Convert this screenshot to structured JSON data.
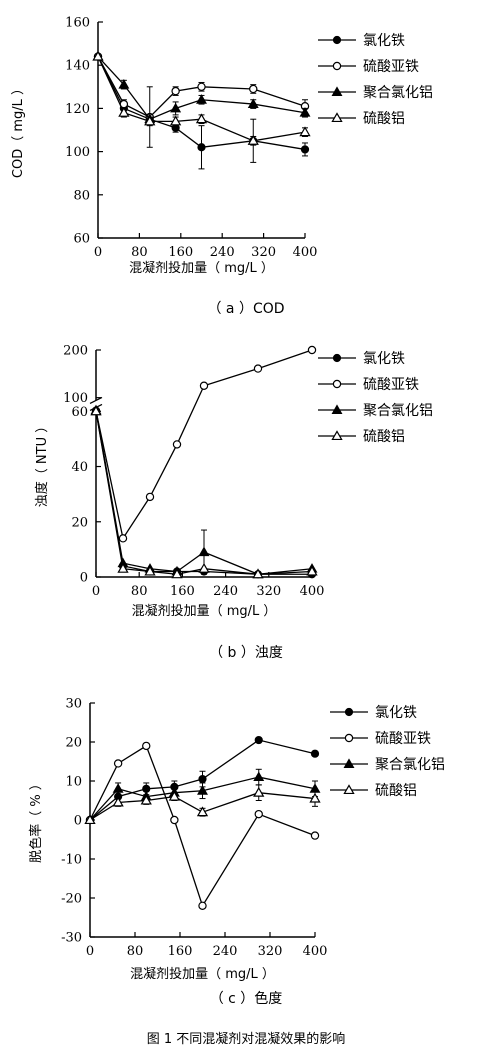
{
  "figure_caption": "图 1   不同混凝剂对混凝效果的影响",
  "legend": [
    "氯化铁",
    "硫酸亚铁",
    "聚合氯化铝",
    "硫酸铝"
  ],
  "chart_data": [
    {
      "type": "line",
      "caption": "（ a ）COD",
      "xlabel": "混凝剂投加量（ mg/L ）",
      "ylabel": "COD（ mg/L ）",
      "xlim": [
        0,
        400
      ],
      "ylim": [
        60,
        160
      ],
      "xticks": [
        0,
        80,
        160,
        240,
        320,
        400
      ],
      "yticks": [
        60,
        80,
        100,
        120,
        140,
        160
      ],
      "series": [
        {
          "name": "氯化铁",
          "marker": "filled-circle",
          "x": [
            0,
            50,
            100,
            150,
            200,
            300,
            400
          ],
          "y": [
            144,
            120,
            115,
            111,
            102,
            105,
            101
          ],
          "error": [
            0,
            3,
            2,
            2,
            10,
            10,
            3
          ]
        },
        {
          "name": "硫酸亚铁",
          "marker": "open-circle",
          "x": [
            0,
            50,
            100,
            150,
            200,
            300,
            400
          ],
          "y": [
            144,
            122,
            116,
            128,
            130,
            129,
            121
          ],
          "error": [
            0,
            2,
            14,
            2,
            2,
            2,
            3
          ]
        },
        {
          "name": "聚合氯化铝",
          "marker": "filled-triangle",
          "x": [
            0,
            50,
            100,
            150,
            200,
            300,
            400
          ],
          "y": [
            144,
            131,
            115,
            120,
            124,
            122,
            118
          ],
          "error": [
            0,
            2,
            2,
            3,
            2,
            2,
            2
          ]
        },
        {
          "name": "硫酸铝",
          "marker": "open-triangle",
          "x": [
            0,
            50,
            100,
            150,
            200,
            300,
            400
          ],
          "y": [
            144,
            118,
            114,
            114,
            115,
            105,
            109
          ],
          "error": [
            0,
            2,
            2,
            2,
            2,
            2,
            2
          ]
        }
      ]
    },
    {
      "type": "line",
      "caption": "（ b ）浊度",
      "xlabel": "",
      "ylabel": "浊度（ NTU ）",
      "xlim": [
        0,
        400
      ],
      "ylim": [
        0,
        200
      ],
      "axis_break": [
        60,
        100
      ],
      "xticks": [
        0,
        80,
        160,
        240,
        320,
        400
      ],
      "yticks": [
        0,
        20,
        40,
        60,
        100,
        200
      ],
      "series": [
        {
          "name": "氯化铁",
          "marker": "filled-circle",
          "x": [
            0,
            50,
            100,
            150,
            200,
            300,
            400
          ],
          "y": [
            62,
            4,
            2,
            2,
            2,
            1,
            1
          ],
          "error": [
            0,
            0,
            0,
            0,
            0,
            0,
            0
          ]
        },
        {
          "name": "硫酸亚铁",
          "marker": "open-circle",
          "x": [
            0,
            50,
            100,
            150,
            200,
            300,
            400
          ],
          "y": [
            61,
            14,
            29,
            48,
            125,
            161,
            200
          ],
          "error": [
            0,
            0,
            0,
            0,
            0,
            0,
            0
          ]
        },
        {
          "name": "聚合氯化铝",
          "marker": "filled-triangle",
          "x": [
            0,
            50,
            100,
            150,
            200,
            300,
            400
          ],
          "y": [
            63,
            5,
            3,
            2,
            9,
            1,
            3
          ],
          "error": [
            0,
            0,
            0,
            0,
            8,
            0,
            0
          ]
        },
        {
          "name": "硫酸铝",
          "marker": "open-triangle",
          "x": [
            0,
            50,
            100,
            150,
            200,
            300,
            400
          ],
          "y": [
            60,
            3,
            2,
            1,
            3,
            1,
            2
          ],
          "error": [
            0,
            0,
            0,
            0,
            0,
            0,
            0
          ]
        }
      ]
    },
    {
      "type": "line",
      "caption": "（ c ）色度",
      "xlabel": "混凝剂投加量（ mg/L ）",
      "ylabel": "脱色率（ % ）",
      "xlim": [
        0,
        400
      ],
      "ylim": [
        -30,
        30
      ],
      "xticks": [
        0,
        80,
        160,
        240,
        320,
        400
      ],
      "yticks": [
        -30,
        -20,
        -10,
        0,
        10,
        20,
        30
      ],
      "series": [
        {
          "name": "氯化铁",
          "marker": "filled-circle",
          "x": [
            0,
            50,
            100,
            150,
            200,
            300,
            400
          ],
          "y": [
            0,
            6,
            8,
            8.5,
            10.5,
            20.5,
            17
          ],
          "error": [
            0,
            1.5,
            1.5,
            1.5,
            2,
            0.5,
            0.5
          ]
        },
        {
          "name": "硫酸亚铁",
          "marker": "open-circle",
          "x": [
            0,
            50,
            100,
            150,
            200,
            300,
            400
          ],
          "y": [
            0,
            14.5,
            19,
            0,
            -22,
            1.5,
            -4
          ],
          "error": [
            0,
            0,
            0,
            0,
            0,
            0,
            0
          ]
        },
        {
          "name": "聚合氯化铝",
          "marker": "filled-triangle",
          "x": [
            0,
            50,
            100,
            150,
            200,
            300,
            400
          ],
          "y": [
            0,
            8,
            6,
            7,
            7.5,
            11,
            8
          ],
          "error": [
            0,
            1.5,
            1.5,
            2,
            2,
            2,
            2
          ]
        },
        {
          "name": "硫酸铝",
          "marker": "open-triangle",
          "x": [
            0,
            50,
            100,
            150,
            200,
            300,
            400
          ],
          "y": [
            0,
            4.5,
            5,
            6,
            2,
            7,
            5.5
          ],
          "error": [
            0,
            1,
            1,
            1,
            1,
            2,
            2
          ]
        }
      ]
    }
  ]
}
